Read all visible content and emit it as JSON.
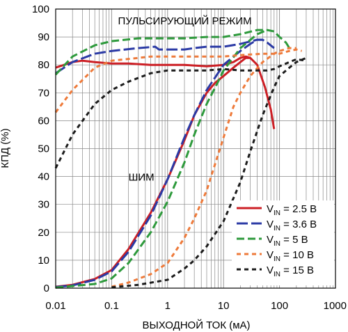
{
  "chart_data": {
    "type": "line",
    "title": "",
    "xlabel": "ВЫХОДНОЙ ТОК (мА)",
    "ylabel": "КПД (%)",
    "x_scale": "log",
    "xlim": [
      0.01,
      1000
    ],
    "ylim": [
      0,
      100
    ],
    "x_ticks": [
      {
        "value": 0.01,
        "label": "0.01"
      },
      {
        "value": 0.1,
        "label": "0.1"
      },
      {
        "value": 1,
        "label": "1"
      },
      {
        "value": 10,
        "label": "10"
      },
      {
        "value": 100,
        "label": "100"
      },
      {
        "value": 1000,
        "label": "1000"
      }
    ],
    "y_ticks": [
      0,
      10,
      20,
      30,
      40,
      50,
      60,
      70,
      80,
      90,
      100
    ],
    "grid": true,
    "annotations": [
      {
        "text": "ПУЛЬСИРУЮЩИЙ РЕЖИМ",
        "x": 0.13,
        "y": 94.5
      },
      {
        "text": "ШИМ",
        "x": 0.2,
        "y": 38.5
      }
    ],
    "legend": {
      "position": "bottom-right",
      "entries": [
        {
          "prefix": "V",
          "sub": "IN",
          "suffix": " = 2.5 В",
          "color": "#cc1f25",
          "dash": "solid"
        },
        {
          "prefix": "V",
          "sub": "IN",
          "suffix": " = 3.6 В",
          "color": "#2b3aa5",
          "dash": "long-dash"
        },
        {
          "prefix": "V",
          "sub": "IN",
          "suffix": " = 5 В",
          "color": "#2e9a3c",
          "dash": "dash"
        },
        {
          "prefix": "V",
          "sub": "IN",
          "suffix": " = 10 В",
          "color": "#ee7a3a",
          "dash": "short-dash"
        },
        {
          "prefix": "V",
          "sub": "IN",
          "suffix": " = 15 В",
          "color": "#1c1c1c",
          "dash": "short-dash"
        }
      ]
    },
    "series": [
      {
        "name": "VIN = 2.5 В",
        "mode": "Burst",
        "color": "#cc1f25",
        "dash": "solid",
        "points": [
          [
            0.01,
            79
          ],
          [
            0.02,
            81
          ],
          [
            0.03,
            81.5
          ],
          [
            0.05,
            81
          ],
          [
            0.1,
            80.5
          ],
          [
            0.2,
            80.5
          ],
          [
            0.5,
            80
          ],
          [
            1,
            80
          ],
          [
            2,
            80
          ],
          [
            5,
            79.5
          ],
          [
            10,
            80
          ],
          [
            15,
            81
          ],
          [
            20,
            82.5
          ],
          [
            25,
            83
          ],
          [
            30,
            82.5
          ],
          [
            40,
            80
          ],
          [
            55,
            72
          ],
          [
            70,
            64
          ],
          [
            80,
            57
          ]
        ]
      },
      {
        "name": "VIN = 2.5 В",
        "mode": "PWM",
        "color": "#cc1f25",
        "dash": "solid",
        "points": [
          [
            0.01,
            0.5
          ],
          [
            0.02,
            1.2
          ],
          [
            0.05,
            3.3
          ],
          [
            0.1,
            6.5
          ],
          [
            0.2,
            14
          ],
          [
            0.5,
            27
          ],
          [
            1,
            39
          ],
          [
            2,
            53
          ],
          [
            3,
            62
          ],
          [
            5,
            70
          ],
          [
            7,
            73.5
          ],
          [
            10,
            76
          ],
          [
            15,
            79
          ],
          [
            20,
            81
          ],
          [
            25,
            82.5
          ],
          [
            30,
            82.5
          ]
        ]
      },
      {
        "name": "VIN = 3.6 В",
        "mode": "Burst",
        "color": "#2b3aa5",
        "dash": "long-dash",
        "points": [
          [
            0.01,
            77
          ],
          [
            0.02,
            81
          ],
          [
            0.05,
            84
          ],
          [
            0.1,
            85
          ],
          [
            0.3,
            86
          ],
          [
            0.6,
            86.5
          ],
          [
            0.7,
            85.5
          ],
          [
            1,
            85.5
          ],
          [
            2,
            85.5
          ],
          [
            3,
            86
          ],
          [
            5,
            86.5
          ],
          [
            8,
            86.5
          ],
          [
            10,
            86.5
          ],
          [
            20,
            87.5
          ],
          [
            40,
            89
          ],
          [
            50,
            89
          ],
          [
            60,
            88
          ],
          [
            80,
            86
          ]
        ]
      },
      {
        "name": "VIN = 3.6 В",
        "mode": "PWM",
        "color": "#2b3aa5",
        "dash": "long-dash",
        "points": [
          [
            0.01,
            0.4
          ],
          [
            0.02,
            1
          ],
          [
            0.05,
            3
          ],
          [
            0.1,
            6
          ],
          [
            0.2,
            13
          ],
          [
            0.5,
            26
          ],
          [
            1,
            39
          ],
          [
            2,
            54
          ],
          [
            3,
            62
          ],
          [
            5,
            71
          ],
          [
            10,
            80
          ],
          [
            15,
            83
          ],
          [
            20,
            85
          ],
          [
            30,
            87.5
          ],
          [
            40,
            89
          ],
          [
            50,
            89
          ]
        ]
      },
      {
        "name": "VIN = 5 В",
        "mode": "Burst",
        "color": "#2e9a3c",
        "dash": "dash",
        "points": [
          [
            0.01,
            76.5
          ],
          [
            0.02,
            83
          ],
          [
            0.05,
            87
          ],
          [
            0.1,
            88.5
          ],
          [
            0.3,
            89.5
          ],
          [
            0.5,
            89.5
          ],
          [
            1,
            89.5
          ],
          [
            2,
            89.5
          ],
          [
            5,
            90
          ],
          [
            10,
            90
          ],
          [
            20,
            91
          ],
          [
            40,
            92.5
          ],
          [
            60,
            92.5
          ],
          [
            80,
            92
          ],
          [
            100,
            90
          ],
          [
            130,
            88
          ],
          [
            150,
            86
          ]
        ]
      },
      {
        "name": "VIN = 5 В",
        "mode": "PWM",
        "color": "#2e9a3c",
        "dash": "dash",
        "points": [
          [
            0.01,
            0.2
          ],
          [
            0.05,
            1.5
          ],
          [
            0.1,
            3.5
          ],
          [
            0.2,
            9
          ],
          [
            0.5,
            20
          ],
          [
            1,
            31
          ],
          [
            2,
            45
          ],
          [
            3,
            55
          ],
          [
            5,
            66
          ],
          [
            8,
            74
          ],
          [
            10,
            78
          ],
          [
            20,
            86
          ],
          [
            40,
            91
          ],
          [
            60,
            92.5
          ]
        ]
      },
      {
        "name": "VIN = 10 В",
        "mode": "Burst",
        "color": "#ee7a3a",
        "dash": "short-dash",
        "points": [
          [
            0.01,
            63
          ],
          [
            0.02,
            71
          ],
          [
            0.05,
            79
          ],
          [
            0.1,
            81.5
          ],
          [
            0.3,
            82.5
          ],
          [
            0.5,
            83
          ],
          [
            1,
            83
          ],
          [
            2,
            83
          ],
          [
            5,
            83
          ],
          [
            10,
            83
          ],
          [
            20,
            83.5
          ],
          [
            50,
            84
          ],
          [
            100,
            84
          ],
          [
            150,
            85
          ],
          [
            200,
            85.5
          ],
          [
            250,
            85
          ]
        ]
      },
      {
        "name": "VIN = 10 В",
        "mode": "PWM",
        "color": "#ee7a3a",
        "dash": "short-dash",
        "points": [
          [
            0.1,
            0.5
          ],
          [
            0.2,
            2
          ],
          [
            0.5,
            5
          ],
          [
            1,
            9
          ],
          [
            2,
            18
          ],
          [
            3,
            25
          ],
          [
            5,
            35
          ],
          [
            10,
            54
          ],
          [
            15,
            65
          ],
          [
            20,
            70
          ],
          [
            30,
            76
          ],
          [
            50,
            81
          ],
          [
            80,
            84
          ],
          [
            100,
            85
          ],
          [
            150,
            86
          ],
          [
            200,
            86
          ]
        ]
      },
      {
        "name": "VIN = 15 В",
        "mode": "Burst",
        "color": "#1c1c1c",
        "dash": "short-dash",
        "points": [
          [
            0.01,
            43
          ],
          [
            0.02,
            55
          ],
          [
            0.05,
            66
          ],
          [
            0.1,
            71
          ],
          [
            0.2,
            74
          ],
          [
            0.5,
            77
          ],
          [
            1,
            78
          ],
          [
            2,
            78
          ],
          [
            5,
            78
          ],
          [
            10,
            78.5
          ],
          [
            20,
            78
          ],
          [
            40,
            78
          ],
          [
            60,
            78
          ],
          [
            80,
            78.5
          ],
          [
            100,
            79.5
          ],
          [
            150,
            81
          ],
          [
            200,
            82
          ],
          [
            300,
            81.5
          ]
        ]
      },
      {
        "name": "VIN = 15 В",
        "mode": "PWM",
        "color": "#1c1c1c",
        "dash": "short-dash",
        "points": [
          [
            0.1,
            0.3
          ],
          [
            0.3,
            1.2
          ],
          [
            1,
            3
          ],
          [
            2,
            7
          ],
          [
            3,
            10
          ],
          [
            5,
            15
          ],
          [
            10,
            24
          ],
          [
            20,
            38
          ],
          [
            30,
            49
          ],
          [
            50,
            62
          ],
          [
            80,
            72
          ],
          [
            100,
            76
          ],
          [
            150,
            79
          ],
          [
            200,
            81
          ],
          [
            300,
            82.5
          ]
        ]
      }
    ]
  }
}
